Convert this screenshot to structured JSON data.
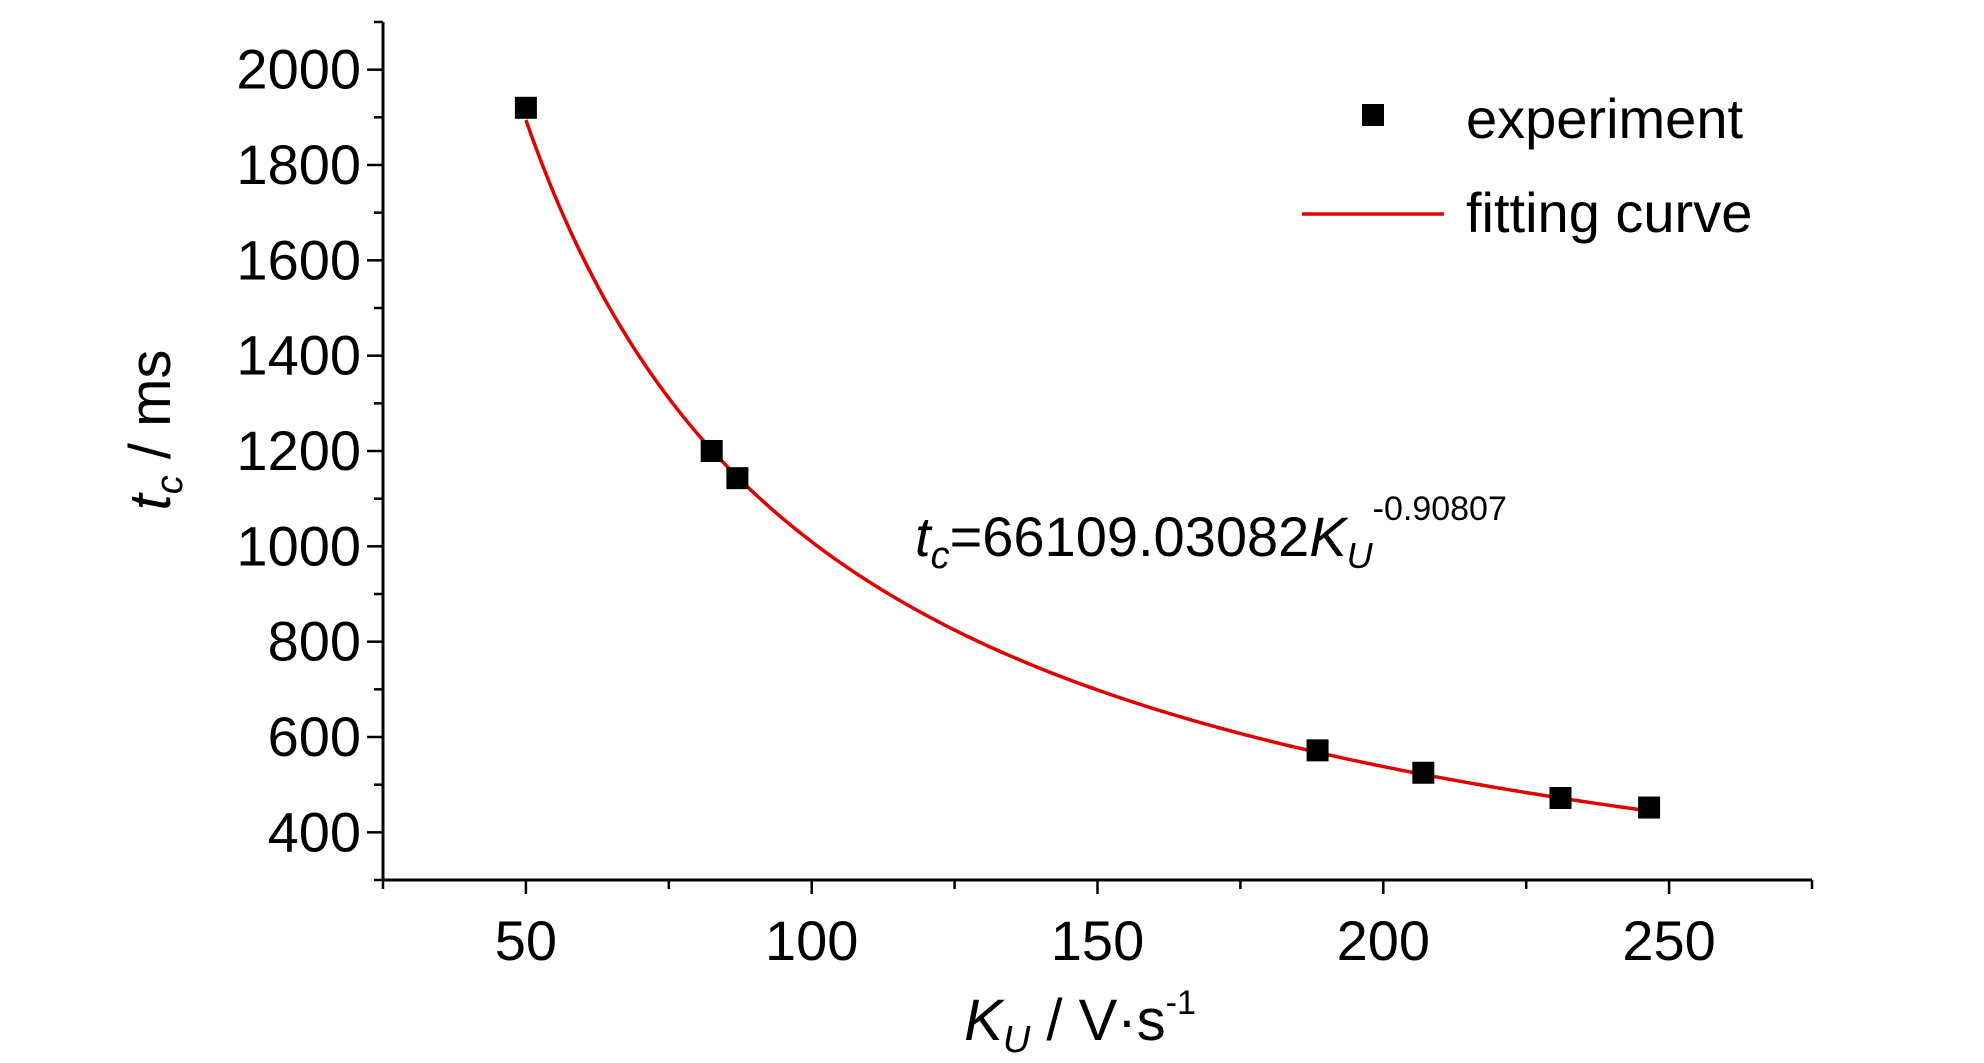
{
  "chart_data": {
    "type": "scatter",
    "x_axis": {
      "label_var": "K",
      "label_sub": "U",
      "label_unit": " / V·s",
      "label_sup": "-1",
      "range": [
        25,
        275
      ],
      "ticks": [
        50,
        100,
        150,
        200,
        250
      ],
      "minor_step": 25
    },
    "y_axis": {
      "label_var": "t",
      "label_sub": "c",
      "label_unit": " / ms",
      "range": [
        300,
        2100
      ],
      "ticks": [
        400,
        600,
        800,
        1000,
        1200,
        1400,
        1600,
        1800,
        2000
      ],
      "minor_step": 100
    },
    "series": [
      {
        "name": "experiment",
        "kind": "scatter",
        "color": "#000000",
        "marker": "square",
        "points": [
          {
            "x": 50,
            "y": 1920
          },
          {
            "x": 82.5,
            "y": 1200
          },
          {
            "x": 87,
            "y": 1143
          },
          {
            "x": 188.5,
            "y": 572
          },
          {
            "x": 207,
            "y": 525
          },
          {
            "x": 231,
            "y": 472
          },
          {
            "x": 246.5,
            "y": 452
          }
        ]
      },
      {
        "name": "fitting curve",
        "kind": "line",
        "color": "#e00000",
        "model": "power",
        "coefficient": 66109.03082,
        "exponent": -0.90807,
        "x_start": 50,
        "x_end": 246.5
      }
    ],
    "equation": {
      "lhs_var": "t",
      "lhs_sub": "c",
      "text": "=66109.03082",
      "var": "K",
      "var_sub": "U",
      "exponent": "-0.90807"
    },
    "legend_position": "top-right",
    "grid": false
  }
}
